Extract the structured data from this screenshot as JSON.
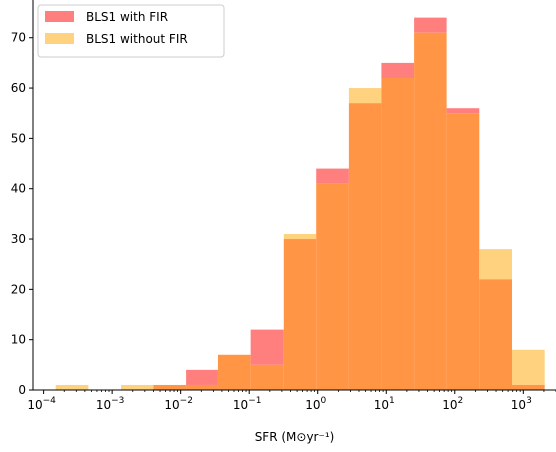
{
  "chart_data": {
    "type": "bar",
    "xlabel": "SFR (M⊙yr⁻¹)",
    "ylabel": "",
    "xscale": "log",
    "xlim": [
      7e-05,
      3000
    ],
    "ylim": [
      0,
      77.5
    ],
    "grid": false,
    "legend_position": "top-left",
    "bin_edges": [
      0.00015,
      0.00045,
      0.00135,
      0.004,
      0.012,
      0.035,
      0.105,
      0.32,
      0.95,
      2.85,
      8.5,
      25.5,
      76,
      228,
      684,
      2050
    ],
    "x_ticks": [
      {
        "value": 0.0001,
        "base": "10",
        "exp": "−4"
      },
      {
        "value": 0.001,
        "base": "10",
        "exp": "−3"
      },
      {
        "value": 0.01,
        "base": "10",
        "exp": "−2"
      },
      {
        "value": 0.1,
        "base": "10",
        "exp": "−1"
      },
      {
        "value": 1,
        "base": "10",
        "exp": "0"
      },
      {
        "value": 10,
        "base": "10",
        "exp": "1"
      },
      {
        "value": 100,
        "base": "10",
        "exp": "2"
      },
      {
        "value": 1000,
        "base": "10",
        "exp": "3"
      }
    ],
    "y_ticks": [
      0,
      10,
      20,
      30,
      40,
      50,
      60,
      70
    ],
    "series": [
      {
        "name": "BLS1 with FIR",
        "color": "#ff7f7f",
        "values": [
          0,
          0,
          0,
          1,
          4,
          7,
          12,
          30,
          44,
          57,
          65,
          74,
          56,
          22,
          1
        ]
      },
      {
        "name": "BLS1 without FIR",
        "color": "#ffd27f",
        "values": [
          1,
          0,
          1,
          1,
          1,
          7,
          5,
          31,
          41,
          60,
          62,
          71,
          55,
          28,
          8
        ]
      }
    ],
    "overlap_color": "#ff9545"
  }
}
